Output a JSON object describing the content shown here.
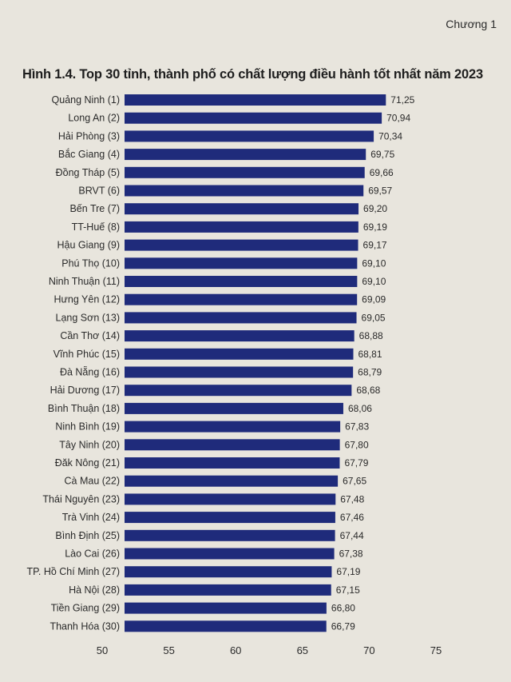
{
  "header": {
    "chapter": "Chương 1"
  },
  "chart_data": {
    "type": "bar",
    "orientation": "horizontal",
    "title": "Hình 1.4. Top 30 tỉnh, thành phố có chất lượng điều hành tốt nhất năm 2023",
    "categories": [
      "Quảng Ninh (1)",
      "Long An (2)",
      "Hải Phòng (3)",
      "Bắc Giang (4)",
      "Đồng Tháp (5)",
      "BRVT (6)",
      "Bến Tre (7)",
      "TT-Huế (8)",
      "Hậu Giang (9)",
      "Phú Thọ (10)",
      "Ninh Thuận (11)",
      "Hưng Yên (12)",
      "Lạng Sơn (13)",
      "Cần Thơ (14)",
      "Vĩnh Phúc (15)",
      "Đà Nẵng (16)",
      "Hải Dương (17)",
      "Bình Thuận (18)",
      "Ninh Bình (19)",
      "Tây Ninh (20)",
      "Đăk Nông (21)",
      "Cà Mau (22)",
      "Thái Nguyên (23)",
      "Trà Vinh (24)",
      "Bình Định (25)",
      "Lào Cai (26)",
      "TP. Hồ Chí Minh (27)",
      "Hà Nội (28)",
      "Tiền Giang (29)",
      "Thanh Hóa (30)"
    ],
    "values": [
      71.25,
      70.94,
      70.34,
      69.75,
      69.66,
      69.57,
      69.2,
      69.19,
      69.17,
      69.1,
      69.1,
      69.09,
      69.05,
      68.88,
      68.81,
      68.79,
      68.68,
      68.06,
      67.83,
      67.8,
      67.79,
      67.65,
      67.48,
      67.46,
      67.44,
      67.38,
      67.19,
      67.15,
      66.8,
      66.79
    ],
    "value_labels": [
      "71,25",
      "70,94",
      "70,34",
      "69,75",
      "69,66",
      "69,57",
      "69,20",
      "69,19",
      "69,17",
      "69,10",
      "69,10",
      "69,09",
      "69,05",
      "68,88",
      "68,81",
      "68,79",
      "68,68",
      "68,06",
      "67,83",
      "67,80",
      "67,79",
      "67,65",
      "67,48",
      "67,46",
      "67,44",
      "67,38",
      "67,19",
      "67,15",
      "66,80",
      "66,79"
    ],
    "xticks": [
      "50",
      "55",
      "60",
      "65",
      "70",
      "75"
    ],
    "xlim": [
      50,
      75
    ],
    "grid": false,
    "bar_color": "#1f2b7b"
  }
}
